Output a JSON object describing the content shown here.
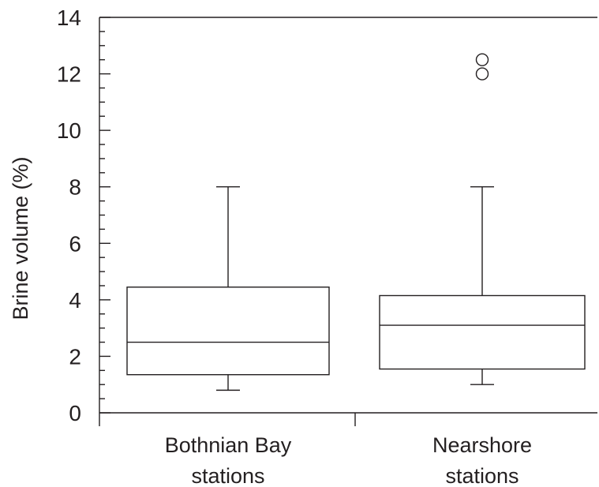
{
  "chart_data": {
    "type": "boxplot",
    "title": "",
    "ylabel": "Brine volume (%)",
    "xlabel": "",
    "ylim": [
      0,
      14
    ],
    "yticks": [
      0,
      2,
      4,
      6,
      8,
      10,
      12,
      14
    ],
    "grid": false,
    "categories": [
      {
        "line1": "Bothnian Bay",
        "line2": "stations"
      },
      {
        "line1": "Nearshore",
        "line2": "stations"
      }
    ],
    "boxes": [
      {
        "whisker_low": 0.8,
        "q1": 1.35,
        "median": 2.5,
        "q3": 4.45,
        "whisker_high": 8.0,
        "outliers": []
      },
      {
        "whisker_low": 1.0,
        "q1": 1.55,
        "median": 3.1,
        "q3": 4.15,
        "whisker_high": 8.0,
        "outliers": [
          12.0,
          12.5
        ]
      }
    ],
    "colors": {
      "ink": "#231f20",
      "background": "#ffffff"
    }
  }
}
